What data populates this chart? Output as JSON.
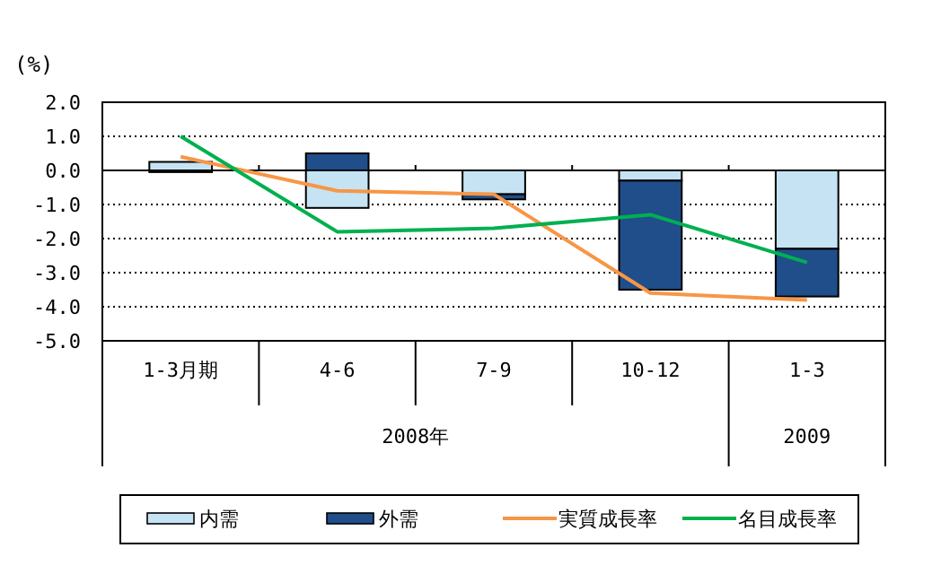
{
  "chart_data": {
    "type": "bar",
    "stacked": true,
    "ylabel": "(%)",
    "categories": [
      "1-3月期",
      "4-6",
      "7-9",
      "10-12",
      "1-3"
    ],
    "series": [
      {
        "name": "内需",
        "color": "#c5e3f3",
        "values": [
          0.25,
          -1.1,
          -0.7,
          -0.3,
          -2.3
        ]
      },
      {
        "name": "外需",
        "color": "#1f4e8a",
        "values": [
          -0.05,
          0.5,
          -0.15,
          -3.2,
          -1.4
        ]
      },
      {
        "name": "実質成長率",
        "type": "line",
        "color": "#f79646",
        "values": [
          0.4,
          -0.6,
          -0.7,
          -3.6,
          -3.8
        ]
      },
      {
        "name": "名目成長率",
        "type": "line",
        "color": "#00b050",
        "values": [
          1.0,
          -1.8,
          -1.7,
          -1.3,
          -2.7
        ]
      }
    ],
    "annotations": [
      "2008年",
      "2009"
    ],
    "ylim": [
      -5,
      2
    ],
    "yticks": [
      {
        "value": 2,
        "label": "2.0"
      },
      {
        "value": 1,
        "label": "1.0"
      },
      {
        "value": 0,
        "label": "0.0"
      },
      {
        "value": -1,
        "label": "-1.0"
      },
      {
        "value": -2,
        "label": "-2.0"
      },
      {
        "value": -3,
        "label": "-3.0"
      },
      {
        "value": -4,
        "label": "-4.0"
      },
      {
        "value": -5,
        "label": "-5.0"
      }
    ],
    "grid": "y",
    "legend": "bottom"
  }
}
